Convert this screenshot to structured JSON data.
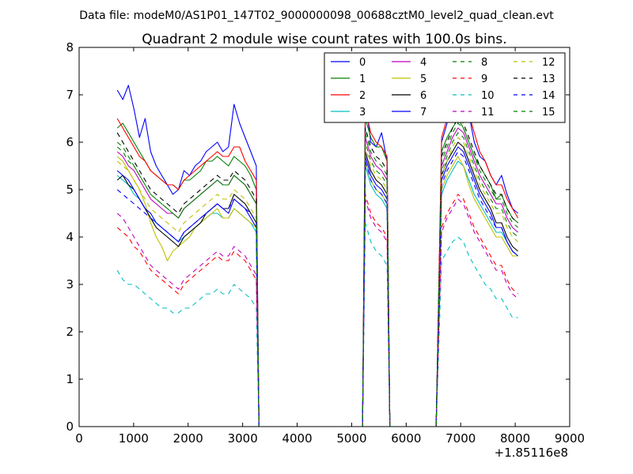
{
  "chart_data": {
    "type": "line",
    "suptitle": "Data file: modeM0/AS1P01_147T02_9000000098_00688cztM0_level2_quad_clean.evt",
    "title": "Quadrant 2 module wise count rates with 100.0s bins.",
    "xlabel": "",
    "ylabel": "",
    "x_offset_label": "+1.85116e8",
    "xlim": [
      0,
      9000
    ],
    "ylim": [
      0,
      8
    ],
    "x_ticks": [
      0,
      1000,
      2000,
      3000,
      4000,
      5000,
      6000,
      7000,
      8000,
      9000
    ],
    "y_ticks": [
      0,
      1,
      2,
      3,
      4,
      5,
      6,
      7,
      8
    ],
    "grid": false,
    "legend": {
      "placement": "top-right",
      "columns": 4
    },
    "segments": [
      {
        "x0": 700,
        "x1": 3250,
        "n": 26
      },
      {
        "x0": 5250,
        "x1": 5650,
        "n": 5
      },
      {
        "x0": 6650,
        "x1": 8050,
        "n": 15
      }
    ],
    "series": [
      {
        "name": "0",
        "color": "#0000ff",
        "style": "solid",
        "values": [
          7.1,
          6.9,
          7.2,
          6.7,
          6.1,
          6.5,
          5.8,
          5.5,
          5.3,
          5.1,
          4.9,
          5.0,
          5.4,
          5.3,
          5.5,
          5.6,
          5.8,
          5.9,
          6.0,
          5.8,
          5.9,
          6.8,
          6.4,
          6.1,
          5.8,
          5.5,
          6.9,
          6.0,
          5.9,
          6.2,
          5.6,
          6.0,
          6.4,
          6.8,
          7.0,
          7.3,
          6.6,
          6.0,
          5.7,
          5.6,
          5.3,
          5.1,
          5.3,
          4.9,
          4.6,
          4.5
        ]
      },
      {
        "name": "1",
        "color": "#008000",
        "style": "solid",
        "values": [
          6.3,
          6.4,
          6.2,
          6.0,
          5.8,
          5.6,
          5.4,
          5.3,
          5.2,
          5.1,
          5.1,
          5.0,
          5.2,
          5.2,
          5.3,
          5.4,
          5.6,
          5.6,
          5.7,
          5.6,
          5.5,
          5.7,
          5.6,
          5.5,
          5.3,
          5.0,
          6.5,
          6.1,
          5.9,
          5.9,
          5.6,
          5.8,
          6.1,
          6.3,
          6.5,
          6.3,
          6.0,
          5.7,
          5.5,
          5.3,
          5.1,
          4.8,
          4.9,
          4.6,
          4.4,
          4.3
        ]
      },
      {
        "name": "2",
        "color": "#ff0000",
        "style": "solid",
        "values": [
          6.5,
          6.3,
          6.1,
          5.9,
          5.7,
          5.6,
          5.4,
          5.3,
          5.2,
          5.1,
          5.1,
          5.0,
          5.2,
          5.3,
          5.4,
          5.5,
          5.6,
          5.7,
          5.8,
          5.7,
          5.7,
          5.9,
          5.9,
          5.6,
          5.4,
          5.2,
          6.7,
          6.2,
          6.0,
          5.9,
          5.7,
          6.1,
          6.5,
          6.9,
          7.2,
          7.0,
          6.6,
          6.2,
          5.8,
          5.6,
          5.3,
          5.1,
          5.1,
          4.8,
          4.6,
          4.4
        ]
      },
      {
        "name": "3",
        "color": "#00bfbf",
        "style": "solid",
        "values": [
          5.3,
          5.2,
          5.1,
          4.9,
          4.8,
          4.6,
          4.4,
          4.3,
          4.2,
          4.1,
          4.0,
          3.9,
          4.0,
          4.1,
          4.2,
          4.3,
          4.4,
          4.5,
          4.5,
          4.4,
          4.4,
          4.6,
          4.5,
          4.4,
          4.3,
          4.1,
          5.5,
          5.1,
          4.9,
          4.8,
          4.6,
          4.9,
          5.2,
          5.4,
          5.6,
          5.5,
          5.2,
          4.9,
          4.7,
          4.5,
          4.3,
          4.1,
          4.1,
          3.9,
          3.7,
          3.6
        ]
      },
      {
        "name": "4",
        "color": "#bf00bf",
        "style": "solid",
        "values": [
          5.8,
          5.7,
          5.5,
          5.4,
          5.2,
          5.0,
          4.8,
          4.7,
          4.6,
          4.5,
          4.5,
          4.4,
          4.6,
          4.7,
          4.8,
          4.9,
          5.0,
          5.1,
          5.2,
          5.1,
          5.1,
          5.3,
          5.2,
          5.1,
          4.9,
          4.7,
          6.1,
          5.7,
          5.5,
          5.4,
          5.2,
          5.5,
          5.8,
          6.1,
          6.3,
          6.2,
          5.9,
          5.6,
          5.3,
          5.1,
          4.9,
          4.7,
          4.7,
          4.4,
          4.2,
          4.1
        ]
      },
      {
        "name": "5",
        "color": "#bfbf00",
        "style": "solid",
        "values": [
          5.7,
          5.6,
          5.4,
          5.2,
          5.0,
          4.7,
          4.3,
          4.0,
          3.8,
          3.5,
          3.7,
          3.8,
          3.9,
          4.0,
          4.2,
          4.3,
          4.4,
          4.5,
          4.6,
          4.4,
          4.4,
          4.6,
          4.5,
          4.4,
          4.3,
          4.2,
          5.6,
          5.2,
          5.0,
          4.9,
          4.7,
          5.0,
          5.3,
          5.5,
          5.7,
          5.5,
          5.1,
          4.8,
          4.6,
          4.4,
          4.2,
          4.0,
          4.0,
          3.8,
          3.6,
          3.6
        ]
      },
      {
        "name": "6",
        "color": "#000000",
        "style": "solid",
        "values": [
          5.2,
          5.3,
          5.1,
          5.0,
          4.8,
          4.6,
          4.4,
          4.2,
          4.1,
          4.0,
          3.9,
          3.8,
          4.0,
          4.1,
          4.2,
          4.3,
          4.5,
          4.6,
          4.7,
          4.6,
          4.6,
          4.9,
          4.8,
          4.7,
          4.5,
          4.3,
          5.8,
          5.4,
          5.2,
          5.1,
          4.9,
          5.3,
          5.6,
          5.8,
          6.0,
          5.9,
          5.6,
          5.3,
          5.0,
          4.8,
          4.6,
          4.3,
          4.3,
          4.0,
          3.8,
          3.7
        ]
      },
      {
        "name": "7",
        "color": "#0000ff",
        "style": "solid",
        "values": [
          5.4,
          5.3,
          5.2,
          5.0,
          4.8,
          4.6,
          4.5,
          4.3,
          4.2,
          4.1,
          4.0,
          3.9,
          4.1,
          4.2,
          4.3,
          4.4,
          4.5,
          4.6,
          4.7,
          4.6,
          4.5,
          4.8,
          4.7,
          4.6,
          4.4,
          4.2,
          5.7,
          5.3,
          5.1,
          5.0,
          4.8,
          5.2,
          5.5,
          5.7,
          5.9,
          5.8,
          5.5,
          5.2,
          4.9,
          4.7,
          4.5,
          4.2,
          4.2,
          3.9,
          3.7,
          3.6
        ]
      },
      {
        "name": "8",
        "color": "#008000",
        "style": "dashed",
        "values": [
          5.9,
          5.8,
          5.6,
          5.5,
          5.3,
          5.1,
          4.9,
          4.8,
          4.7,
          4.6,
          4.5,
          4.4,
          4.6,
          4.7,
          4.8,
          4.9,
          5.0,
          5.1,
          5.2,
          5.1,
          5.1,
          5.3,
          5.2,
          5.1,
          4.9,
          4.7,
          6.0,
          5.6,
          5.4,
          5.3,
          5.1,
          5.4,
          5.7,
          6.0,
          6.2,
          6.1,
          5.8,
          5.5,
          5.2,
          5.0,
          4.8,
          4.6,
          4.6,
          4.3,
          4.1,
          4.0
        ]
      },
      {
        "name": "9",
        "color": "#ff0000",
        "style": "dashed",
        "values": [
          4.2,
          4.1,
          4.0,
          3.8,
          3.7,
          3.5,
          3.3,
          3.2,
          3.1,
          3.0,
          2.9,
          2.8,
          3.0,
          3.1,
          3.2,
          3.3,
          3.4,
          3.5,
          3.6,
          3.5,
          3.5,
          3.7,
          3.6,
          3.5,
          3.3,
          3.1,
          4.9,
          4.5,
          4.3,
          4.2,
          4.0,
          4.2,
          4.5,
          4.7,
          4.9,
          4.8,
          4.5,
          4.2,
          4.0,
          3.8,
          3.6,
          3.4,
          3.4,
          3.1,
          2.9,
          2.8
        ]
      },
      {
        "name": "10",
        "color": "#00bfbf",
        "style": "dashed",
        "values": [
          3.3,
          3.1,
          3.0,
          3.0,
          2.9,
          2.8,
          2.7,
          2.6,
          2.5,
          2.5,
          2.4,
          2.4,
          2.5,
          2.5,
          2.6,
          2.7,
          2.8,
          2.8,
          2.9,
          2.8,
          2.8,
          3.0,
          2.9,
          2.8,
          2.7,
          2.5,
          4.3,
          3.9,
          3.7,
          3.6,
          3.4,
          3.5,
          3.7,
          3.9,
          4.0,
          3.9,
          3.6,
          3.4,
          3.2,
          3.0,
          2.9,
          2.7,
          2.7,
          2.5,
          2.3,
          2.3
        ]
      },
      {
        "name": "11",
        "color": "#bf00bf",
        "style": "dashed",
        "values": [
          4.5,
          4.4,
          4.2,
          4.0,
          3.8,
          3.6,
          3.4,
          3.3,
          3.2,
          3.1,
          3.0,
          2.9,
          3.1,
          3.2,
          3.3,
          3.4,
          3.5,
          3.6,
          3.7,
          3.6,
          3.6,
          3.8,
          3.7,
          3.6,
          3.4,
          3.2,
          4.8,
          4.4,
          4.2,
          4.1,
          3.9,
          4.1,
          4.4,
          4.6,
          4.8,
          4.7,
          4.4,
          4.1,
          3.9,
          3.7,
          3.5,
          3.3,
          3.3,
          3.0,
          2.8,
          2.7
        ]
      },
      {
        "name": "12",
        "color": "#bfbf00",
        "style": "dashed",
        "values": [
          5.6,
          5.5,
          5.4,
          5.2,
          5.0,
          4.8,
          4.6,
          4.5,
          4.4,
          4.3,
          4.2,
          4.1,
          4.3,
          4.4,
          4.5,
          4.6,
          4.7,
          4.8,
          4.9,
          4.8,
          4.8,
          5.0,
          4.9,
          4.8,
          4.6,
          4.4,
          5.9,
          5.5,
          5.3,
          5.2,
          5.0,
          5.3,
          5.6,
          5.9,
          6.1,
          6.0,
          5.7,
          5.4,
          5.1,
          4.9,
          4.7,
          4.5,
          4.5,
          4.2,
          4.0,
          3.9
        ]
      },
      {
        "name": "13",
        "color": "#000000",
        "style": "dashed",
        "values": [
          6.2,
          6.0,
          5.8,
          5.6,
          5.4,
          5.2,
          5.0,
          4.9,
          4.8,
          4.7,
          4.6,
          4.5,
          4.7,
          4.8,
          4.9,
          5.0,
          5.1,
          5.2,
          5.3,
          5.2,
          5.2,
          5.4,
          5.3,
          5.2,
          5.0,
          4.8,
          6.3,
          5.9,
          5.7,
          5.6,
          5.4,
          5.7,
          6.0,
          6.3,
          6.5,
          6.4,
          6.1,
          5.8,
          5.5,
          5.3,
          5.1,
          4.9,
          4.9,
          4.6,
          4.4,
          4.3
        ]
      },
      {
        "name": "14",
        "color": "#0000ff",
        "style": "dashed",
        "values": [
          5.0,
          4.9,
          4.8,
          4.7,
          4.6,
          4.5,
          4.4,
          4.3,
          4.2,
          4.1,
          4.0,
          3.9,
          4.1,
          4.2,
          4.3,
          4.4,
          4.5,
          4.6,
          4.7,
          4.6,
          4.6,
          4.8,
          4.7,
          4.6,
          4.5,
          4.3,
          5.6,
          5.2,
          5.0,
          4.9,
          4.7,
          5.1,
          5.4,
          5.6,
          5.8,
          5.7,
          5.4,
          5.1,
          4.8,
          4.6,
          4.4,
          4.2,
          4.2,
          3.9,
          3.7,
          3.6
        ]
      },
      {
        "name": "15",
        "color": "#008000",
        "style": "dashed",
        "values": [
          6.0,
          5.9,
          5.7,
          5.5,
          5.3,
          5.1,
          4.9,
          4.8,
          4.7,
          4.6,
          4.5,
          4.4,
          4.6,
          4.7,
          4.8,
          4.9,
          5.0,
          5.1,
          5.2,
          5.1,
          5.1,
          5.3,
          5.2,
          5.1,
          4.9,
          4.7,
          6.2,
          5.8,
          5.6,
          5.5,
          5.3,
          5.6,
          5.9,
          6.2,
          6.4,
          6.3,
          6.0,
          5.7,
          5.4,
          5.2,
          5.0,
          4.8,
          4.8,
          4.5,
          4.3,
          4.2
        ]
      }
    ]
  }
}
